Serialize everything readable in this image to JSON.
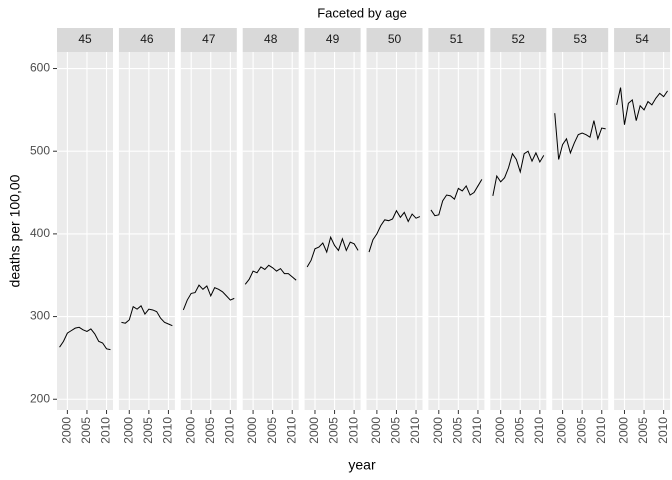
{
  "chart_data": {
    "type": "line",
    "title": "Faceted by age",
    "xlabel": "year",
    "ylabel": "deaths per 100,00",
    "x": [
      1998,
      1999,
      2000,
      2001,
      2002,
      2003,
      2004,
      2005,
      2006,
      2007,
      2008,
      2009,
      2010,
      2011
    ],
    "xlim": [
      1997.35,
      2011.65
    ],
    "xticks": [
      2000,
      2005,
      2010
    ],
    "ylim": [
      187,
      620
    ],
    "yticks": [
      200,
      300,
      400,
      500,
      600
    ],
    "grid": true,
    "color": "#000000",
    "series": [
      {
        "name": "45",
        "values": [
          263,
          270,
          280,
          283,
          286,
          287,
          284,
          282,
          285,
          279,
          270,
          268,
          261,
          260
        ]
      },
      {
        "name": "46",
        "values": [
          293,
          292,
          296,
          312,
          309,
          313,
          303,
          309,
          308,
          306,
          298,
          293,
          291,
          289
        ]
      },
      {
        "name": "47",
        "values": [
          308,
          320,
          328,
          329,
          338,
          333,
          337,
          325,
          335,
          333,
          330,
          325,
          320,
          322
        ]
      },
      {
        "name": "48",
        "values": [
          339,
          345,
          355,
          353,
          360,
          357,
          362,
          359,
          355,
          358,
          352,
          352,
          348,
          344
        ]
      },
      {
        "name": "49",
        "values": [
          360,
          368,
          382,
          384,
          389,
          378,
          396,
          386,
          380,
          394,
          380,
          390,
          388,
          380
        ]
      },
      {
        "name": "50",
        "values": [
          378,
          393,
          400,
          410,
          417,
          416,
          418,
          428,
          420,
          426,
          415,
          424,
          419,
          421
        ]
      },
      {
        "name": "51",
        "values": [
          429,
          422,
          423,
          440,
          447,
          446,
          442,
          455,
          452,
          458,
          447,
          450,
          458,
          466
        ]
      },
      {
        "name": "52",
        "values": [
          446,
          470,
          463,
          468,
          480,
          497,
          490,
          475,
          497,
          500,
          488,
          498,
          487,
          495
        ]
      },
      {
        "name": "53",
        "values": [
          546,
          490,
          508,
          515,
          498,
          510,
          520,
          522,
          520,
          517,
          537,
          515,
          528,
          527
        ]
      },
      {
        "name": "54",
        "values": [
          556,
          577,
          532,
          558,
          562,
          537,
          555,
          550,
          560,
          556,
          564,
          570,
          566,
          573
        ]
      }
    ]
  }
}
